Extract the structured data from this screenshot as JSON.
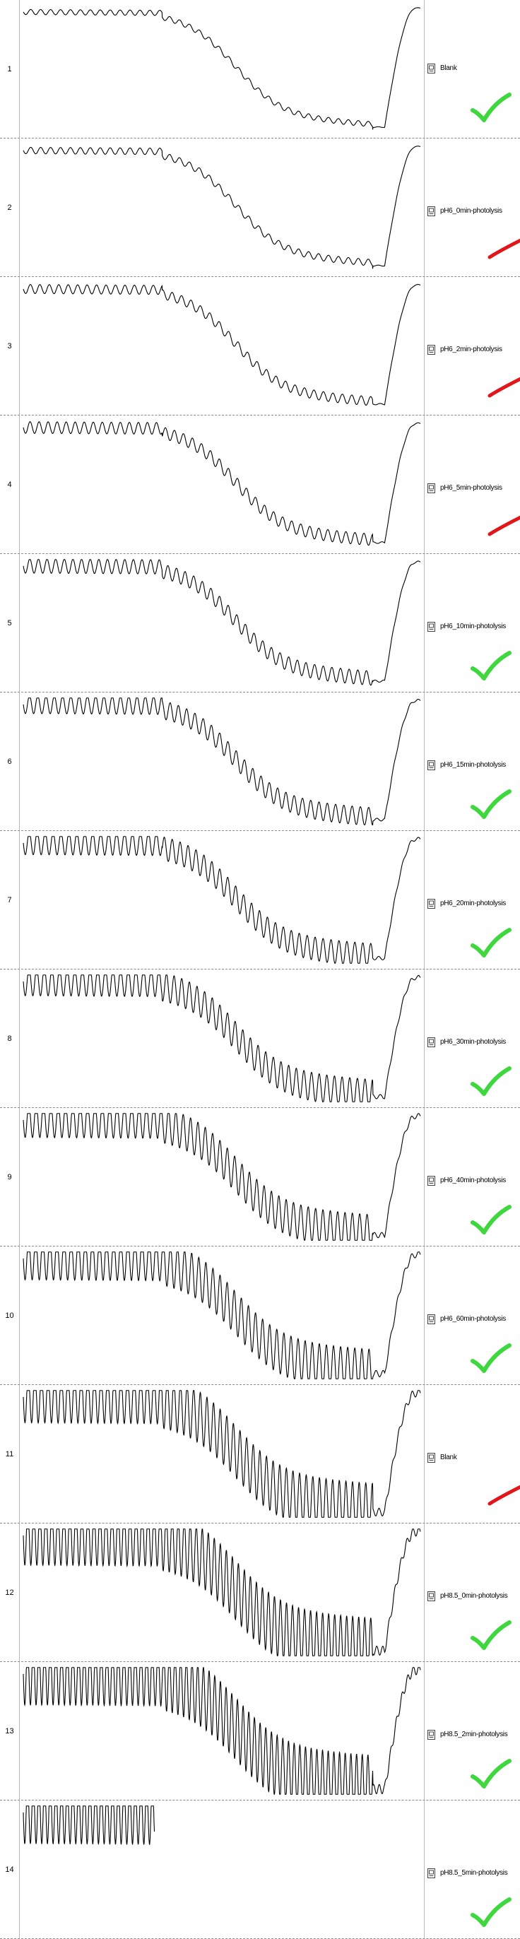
{
  "rows": [
    {
      "number": "1",
      "label": "Blank",
      "status": "ok",
      "status_icon": "green-check-icon",
      "waveform": {
        "cycles": 40,
        "amplitude": 0.04,
        "tail_cut": false
      }
    },
    {
      "number": "2",
      "label": "pH6_0min-photolysis",
      "status": "bad",
      "status_icon": "red-mark-icon",
      "waveform": {
        "cycles": 40,
        "amplitude": 0.05,
        "tail_cut": false
      }
    },
    {
      "number": "3",
      "label": "pH6_2min-photolysis",
      "status": "bad",
      "status_icon": "red-mark-icon",
      "waveform": {
        "cycles": 42,
        "amplitude": 0.07,
        "tail_cut": false
      }
    },
    {
      "number": "4",
      "label": "pH6_5min-photolysis",
      "status": "bad",
      "status_icon": "red-mark-icon",
      "waveform": {
        "cycles": 44,
        "amplitude": 0.09,
        "tail_cut": false
      }
    },
    {
      "number": "5",
      "label": "pH6_10min-photolysis",
      "status": "ok",
      "status_icon": "green-check-icon",
      "waveform": {
        "cycles": 46,
        "amplitude": 0.11,
        "tail_cut": false
      }
    },
    {
      "number": "6",
      "label": "pH6_15min-photolysis",
      "status": "ok",
      "status_icon": "green-check-icon",
      "waveform": {
        "cycles": 48,
        "amplitude": 0.14,
        "tail_cut": false
      }
    },
    {
      "number": "7",
      "label": "pH6_20min-photolysis",
      "status": "ok",
      "status_icon": "green-check-icon",
      "waveform": {
        "cycles": 50,
        "amplitude": 0.18,
        "tail_cut": false
      }
    },
    {
      "number": "8",
      "label": "pH6_30min-photolysis",
      "status": "ok",
      "status_icon": "green-check-icon",
      "waveform": {
        "cycles": 52,
        "amplitude": 0.22,
        "tail_cut": false
      }
    },
    {
      "number": "9",
      "label": "pH6_40min-photolysis",
      "status": "ok",
      "status_icon": "green-check-icon",
      "waveform": {
        "cycles": 54,
        "amplitude": 0.27,
        "tail_cut": false
      }
    },
    {
      "number": "10",
      "label": "pH6_60min-photolysis",
      "status": "ok",
      "status_icon": "green-check-icon",
      "waveform": {
        "cycles": 56,
        "amplitude": 0.33,
        "tail_cut": false
      }
    },
    {
      "number": "11",
      "label": "Blank",
      "status": "bad",
      "status_icon": "red-mark-icon",
      "waveform": {
        "cycles": 60,
        "amplitude": 0.4,
        "tail_cut": false
      }
    },
    {
      "number": "12",
      "label": "pH8.5_0min-photolysis",
      "status": "ok",
      "status_icon": "green-check-icon",
      "waveform": {
        "cycles": 66,
        "amplitude": 0.46,
        "tail_cut": false
      }
    },
    {
      "number": "13",
      "label": "pH8.5_2min-photolysis",
      "status": "ok",
      "status_icon": "green-check-icon",
      "waveform": {
        "cycles": 70,
        "amplitude": 0.48,
        "tail_cut": false
      }
    },
    {
      "number": "14",
      "label": "pH8.5_5min-photolysis",
      "status": "ok",
      "status_icon": "green-check-icon",
      "waveform": {
        "cycles": 70,
        "amplitude": 0.48,
        "tail_cut": true
      }
    }
  ],
  "colors": {
    "background": "#ffffff",
    "trace": "#000000",
    "divider": "#8a8a8a",
    "check_green": "#3ed83e",
    "mark_red": "#e0161b"
  }
}
